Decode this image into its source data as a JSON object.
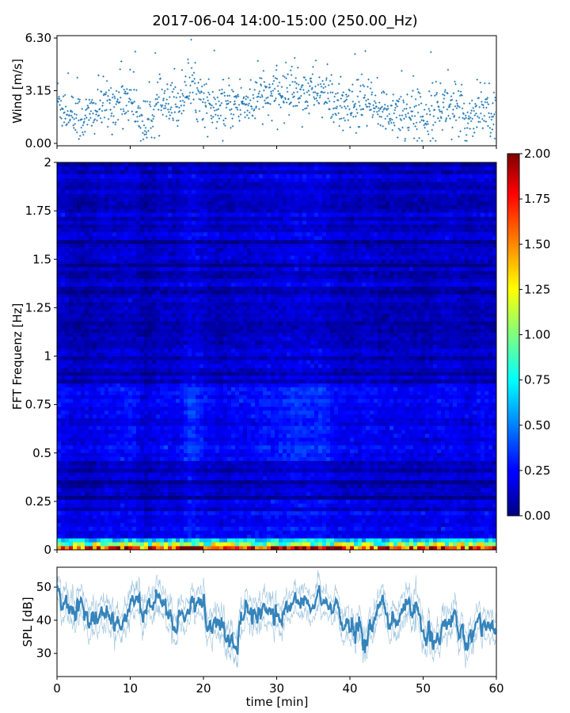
{
  "title": "2017-06-04 14:00-15:00 (250.00_Hz)",
  "chart_data": [
    {
      "type": "scatter",
      "panel": "wind",
      "ylabel": "Wind [m/s]",
      "ylim": [
        0,
        6.3
      ],
      "yticks": [
        "0.00",
        "3.15",
        "6.30"
      ],
      "xlim": [
        0,
        60
      ],
      "grid": false,
      "marker_color": "#1f77b4",
      "series": [
        {
          "x": [
            0,
            2,
            4,
            6,
            8,
            10,
            12,
            14,
            16,
            18,
            20,
            22,
            24,
            26,
            28,
            30,
            32,
            34,
            36,
            38,
            40,
            42,
            44,
            46,
            48,
            50,
            52,
            54,
            56,
            58,
            60
          ],
          "values": [
            2.6,
            1.6,
            1.5,
            2.2,
            2.4,
            2.8,
            1.0,
            2.4,
            2.0,
            3.6,
            2.6,
            1.8,
            2.4,
            2.4,
            2.8,
            2.8,
            3.2,
            3.1,
            3.2,
            2.2,
            1.9,
            2.6,
            1.8,
            2.0,
            1.8,
            1.6,
            2.2,
            2.3,
            1.4,
            2.4,
            1.9
          ]
        }
      ]
    },
    {
      "type": "heatmap",
      "panel": "spectrogram",
      "ylabel": "FFT Frequenz [Hz]",
      "ylim": [
        0,
        2
      ],
      "yticks": [
        "0",
        "0.25",
        "0.5",
        "0.75",
        "1",
        "1.25",
        "1.5",
        "1.75",
        "2"
      ],
      "xlim": [
        0,
        60
      ],
      "colormap": "jet",
      "colorbar": {
        "range": [
          0,
          2
        ],
        "ticks": [
          "0.00",
          "0.25",
          "0.50",
          "0.75",
          "1.00",
          "1.25",
          "1.50",
          "1.75",
          "2.00"
        ]
      }
    },
    {
      "type": "line",
      "panel": "spl",
      "ylabel": "SPL [dB]",
      "xlabel": "time [min]",
      "ylim": [
        23,
        56
      ],
      "yticks": [
        "30",
        "40",
        "50"
      ],
      "xlim": [
        0,
        60
      ],
      "xticks": [
        "0",
        "10",
        "20",
        "30",
        "40",
        "50",
        "60"
      ],
      "line_color": "#1f77b4",
      "series": [
        {
          "x": [
            0,
            2,
            4,
            6,
            8,
            10,
            12,
            14,
            16,
            18,
            20,
            22,
            24,
            26,
            28,
            30,
            32,
            34,
            36,
            38,
            40,
            42,
            44,
            46,
            48,
            50,
            52,
            54,
            56,
            58,
            60
          ],
          "values": [
            52,
            44,
            38,
            44,
            40,
            44,
            40,
            48,
            40,
            42,
            44,
            38,
            32,
            44,
            42,
            40,
            46,
            45,
            46,
            43,
            37,
            34,
            44,
            40,
            44,
            37,
            30,
            41,
            38,
            41,
            37
          ]
        }
      ]
    }
  ]
}
